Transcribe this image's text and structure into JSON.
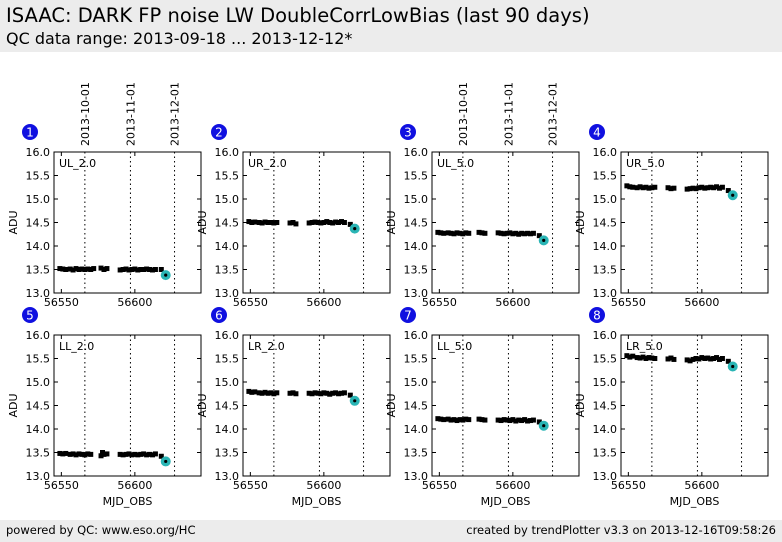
{
  "header": {
    "title": "ISAAC: DARK FP noise LW DoubleCorrLowBias (last 90 days)",
    "subtitle": "QC data range: 2013-09-18 ... 2013-12-12*"
  },
  "footer": {
    "left": "powered by QC: www.eso.org/HC",
    "right": "created by trendPlotter v3.3 on 2013-12-16T09:58:26"
  },
  "colors": {
    "marker": "#000000",
    "last_point": "#2ab5b5",
    "badge": "#1010e0",
    "header_bg": "#ececec"
  },
  "date_markers": [
    {
      "label": "2013-10-01",
      "mjd": 56566
    },
    {
      "label": "2013-11-01",
      "mjd": 56597
    },
    {
      "label": "2013-12-01",
      "mjd": 56627
    }
  ],
  "chart_data": [
    {
      "type": "scatter",
      "panel": "1",
      "label": "UL_2.0",
      "xlabel": "",
      "ylabel": "ADU",
      "xlim": [
        56545,
        56645
      ],
      "ylim": [
        13.0,
        16.0
      ],
      "xticks": [
        56550,
        56600
      ],
      "yticks": [
        13.0,
        13.5,
        14.0,
        14.5,
        15.0,
        15.5,
        16.0
      ],
      "x": [
        56549,
        56551,
        56553,
        56556,
        56558,
        56560,
        56562,
        56564,
        56566,
        56568,
        56570,
        56572,
        56577,
        56579,
        56581,
        56590,
        56592,
        56594,
        56596,
        56598,
        56600,
        56602,
        56604,
        56606,
        56608,
        56610,
        56612,
        56614,
        56618
      ],
      "y": [
        13.52,
        13.51,
        13.5,
        13.51,
        13.49,
        13.52,
        13.5,
        13.51,
        13.5,
        13.51,
        13.5,
        13.52,
        13.53,
        13.5,
        13.52,
        13.49,
        13.5,
        13.51,
        13.49,
        13.5,
        13.51,
        13.49,
        13.5,
        13.5,
        13.51,
        13.5,
        13.49,
        13.5,
        13.5
      ],
      "last": {
        "x": 56621,
        "y": 13.38
      }
    },
    {
      "type": "scatter",
      "panel": "2",
      "label": "UR_2.0",
      "xlabel": "",
      "ylabel": "ADU",
      "xlim": [
        56545,
        56645
      ],
      "ylim": [
        13.0,
        16.0
      ],
      "xticks": [
        56550,
        56600
      ],
      "yticks": [
        13.0,
        13.5,
        14.0,
        14.5,
        15.0,
        15.5,
        16.0
      ],
      "x": [
        56549,
        56551,
        56553,
        56556,
        56558,
        56560,
        56562,
        56564,
        56566,
        56568,
        56577,
        56579,
        56581,
        56590,
        56592,
        56594,
        56596,
        56598,
        56600,
        56602,
        56604,
        56606,
        56608,
        56610,
        56612,
        56614,
        56618
      ],
      "y": [
        14.52,
        14.5,
        14.51,
        14.5,
        14.49,
        14.51,
        14.5,
        14.5,
        14.49,
        14.5,
        14.49,
        14.5,
        14.47,
        14.49,
        14.5,
        14.51,
        14.5,
        14.49,
        14.5,
        14.52,
        14.5,
        14.49,
        14.51,
        14.5,
        14.52,
        14.5,
        14.46
      ],
      "last": {
        "x": 56621,
        "y": 14.37
      }
    },
    {
      "type": "scatter",
      "panel": "3",
      "label": "UL_5.0",
      "xlabel": "",
      "ylabel": "ADU",
      "xlim": [
        56545,
        56645
      ],
      "ylim": [
        13.0,
        16.0
      ],
      "xticks": [
        56550,
        56600
      ],
      "yticks": [
        13.0,
        13.5,
        14.0,
        14.5,
        15.0,
        15.5,
        16.0
      ],
      "x": [
        56549,
        56551,
        56553,
        56556,
        56558,
        56560,
        56562,
        56564,
        56566,
        56568,
        56570,
        56577,
        56579,
        56581,
        56590,
        56592,
        56594,
        56596,
        56598,
        56600,
        56602,
        56604,
        56606,
        56608,
        56610,
        56612,
        56614,
        56618
      ],
      "y": [
        14.29,
        14.28,
        14.27,
        14.28,
        14.27,
        14.26,
        14.28,
        14.27,
        14.26,
        14.28,
        14.27,
        14.29,
        14.28,
        14.27,
        14.28,
        14.27,
        14.26,
        14.27,
        14.28,
        14.26,
        14.27,
        14.25,
        14.27,
        14.26,
        14.27,
        14.26,
        14.27,
        14.22
      ],
      "last": {
        "x": 56621,
        "y": 14.12
      }
    },
    {
      "type": "scatter",
      "panel": "4",
      "label": "UR_5.0",
      "xlabel": "",
      "ylabel": "ADU",
      "xlim": [
        56545,
        56645
      ],
      "ylim": [
        13.0,
        16.0
      ],
      "xticks": [
        56550,
        56600
      ],
      "yticks": [
        13.0,
        13.5,
        14.0,
        14.5,
        15.0,
        15.5,
        16.0
      ],
      "x": [
        56549,
        56551,
        56553,
        56556,
        56558,
        56560,
        56562,
        56564,
        56566,
        56568,
        56577,
        56579,
        56581,
        56590,
        56592,
        56594,
        56596,
        56598,
        56600,
        56602,
        56604,
        56606,
        56608,
        56610,
        56612,
        56614,
        56618
      ],
      "y": [
        15.28,
        15.26,
        15.25,
        15.24,
        15.26,
        15.24,
        15.25,
        15.23,
        15.24,
        15.25,
        15.24,
        15.22,
        15.23,
        15.21,
        15.22,
        15.23,
        15.22,
        15.24,
        15.25,
        15.23,
        15.24,
        15.25,
        15.24,
        15.26,
        15.23,
        15.25,
        15.18
      ],
      "last": {
        "x": 56621,
        "y": 15.08
      }
    },
    {
      "type": "scatter",
      "panel": "5",
      "label": "LL_2.0",
      "xlabel": "MJD_OBS",
      "ylabel": "ADU",
      "xlim": [
        56545,
        56645
      ],
      "ylim": [
        13.0,
        16.0
      ],
      "xticks": [
        56550,
        56600
      ],
      "yticks": [
        13.0,
        13.5,
        14.0,
        14.5,
        15.0,
        15.5,
        16.0
      ],
      "x": [
        56549,
        56551,
        56553,
        56556,
        56558,
        56560,
        56562,
        56564,
        56566,
        56568,
        56570,
        56577,
        56578,
        56579,
        56581,
        56590,
        56592,
        56594,
        56596,
        56598,
        56600,
        56602,
        56604,
        56606,
        56608,
        56610,
        56612,
        56614,
        56618
      ],
      "y": [
        13.48,
        13.47,
        13.48,
        13.46,
        13.47,
        13.45,
        13.47,
        13.46,
        13.45,
        13.47,
        13.46,
        13.43,
        13.5,
        13.46,
        13.47,
        13.46,
        13.45,
        13.46,
        13.47,
        13.45,
        13.46,
        13.45,
        13.46,
        13.47,
        13.45,
        13.46,
        13.45,
        13.47,
        13.42
      ],
      "last": {
        "x": 56621,
        "y": 13.31
      }
    },
    {
      "type": "scatter",
      "panel": "6",
      "label": "LR_2.0",
      "xlabel": "MJD_OBS",
      "ylabel": "ADU",
      "xlim": [
        56545,
        56645
      ],
      "ylim": [
        13.0,
        16.0
      ],
      "xticks": [
        56550,
        56600
      ],
      "yticks": [
        13.0,
        13.5,
        14.0,
        14.5,
        15.0,
        15.5,
        16.0
      ],
      "x": [
        56549,
        56551,
        56553,
        56556,
        56558,
        56560,
        56562,
        56564,
        56566,
        56568,
        56577,
        56579,
        56581,
        56590,
        56592,
        56594,
        56596,
        56598,
        56600,
        56602,
        56604,
        56606,
        56608,
        56610,
        56612,
        56614,
        56618
      ],
      "y": [
        14.8,
        14.78,
        14.79,
        14.77,
        14.76,
        14.78,
        14.76,
        14.77,
        14.75,
        14.77,
        14.76,
        14.77,
        14.75,
        14.76,
        14.75,
        14.77,
        14.76,
        14.75,
        14.77,
        14.76,
        14.74,
        14.76,
        14.77,
        14.75,
        14.76,
        14.77,
        14.72
      ],
      "last": {
        "x": 56621,
        "y": 14.6
      }
    },
    {
      "type": "scatter",
      "panel": "7",
      "label": "LL_5.0",
      "xlabel": "MJD_OBS",
      "ylabel": "ADU",
      "xlim": [
        56545,
        56645
      ],
      "ylim": [
        13.0,
        16.0
      ],
      "xticks": [
        56550,
        56600
      ],
      "yticks": [
        13.0,
        13.5,
        14.0,
        14.5,
        15.0,
        15.5,
        16.0
      ],
      "x": [
        56549,
        56551,
        56553,
        56556,
        56558,
        56560,
        56562,
        56564,
        56566,
        56568,
        56570,
        56577,
        56579,
        56581,
        56590,
        56592,
        56594,
        56596,
        56598,
        56600,
        56602,
        56604,
        56606,
        56608,
        56610,
        56612,
        56614,
        56618
      ],
      "y": [
        14.22,
        14.21,
        14.2,
        14.21,
        14.19,
        14.2,
        14.18,
        14.2,
        14.19,
        14.21,
        14.2,
        14.21,
        14.2,
        14.19,
        14.19,
        14.18,
        14.2,
        14.19,
        14.18,
        14.2,
        14.17,
        14.19,
        14.18,
        14.2,
        14.17,
        14.18,
        14.19,
        14.15
      ],
      "last": {
        "x": 56621,
        "y": 14.07
      }
    },
    {
      "type": "scatter",
      "panel": "8",
      "label": "LR_5.0",
      "xlabel": "MJD_OBS",
      "ylabel": "ADU",
      "xlim": [
        56545,
        56645
      ],
      "ylim": [
        13.0,
        16.0
      ],
      "xticks": [
        56550,
        56600
      ],
      "yticks": [
        13.0,
        13.5,
        14.0,
        14.5,
        15.0,
        15.5,
        16.0
      ],
      "x": [
        56549,
        56551,
        56553,
        56556,
        56558,
        56560,
        56562,
        56564,
        56566,
        56568,
        56577,
        56579,
        56581,
        56590,
        56592,
        56594,
        56596,
        56598,
        56600,
        56602,
        56604,
        56606,
        56608,
        56610,
        56612,
        56614,
        56618
      ],
      "y": [
        15.56,
        15.53,
        15.55,
        15.52,
        15.51,
        15.53,
        15.5,
        15.52,
        15.51,
        15.5,
        15.49,
        15.51,
        15.48,
        15.47,
        15.45,
        15.48,
        15.5,
        15.49,
        15.52,
        15.5,
        15.51,
        15.49,
        15.5,
        15.52,
        15.48,
        15.5,
        15.44
      ],
      "last": {
        "x": 56621,
        "y": 15.33
      }
    }
  ]
}
